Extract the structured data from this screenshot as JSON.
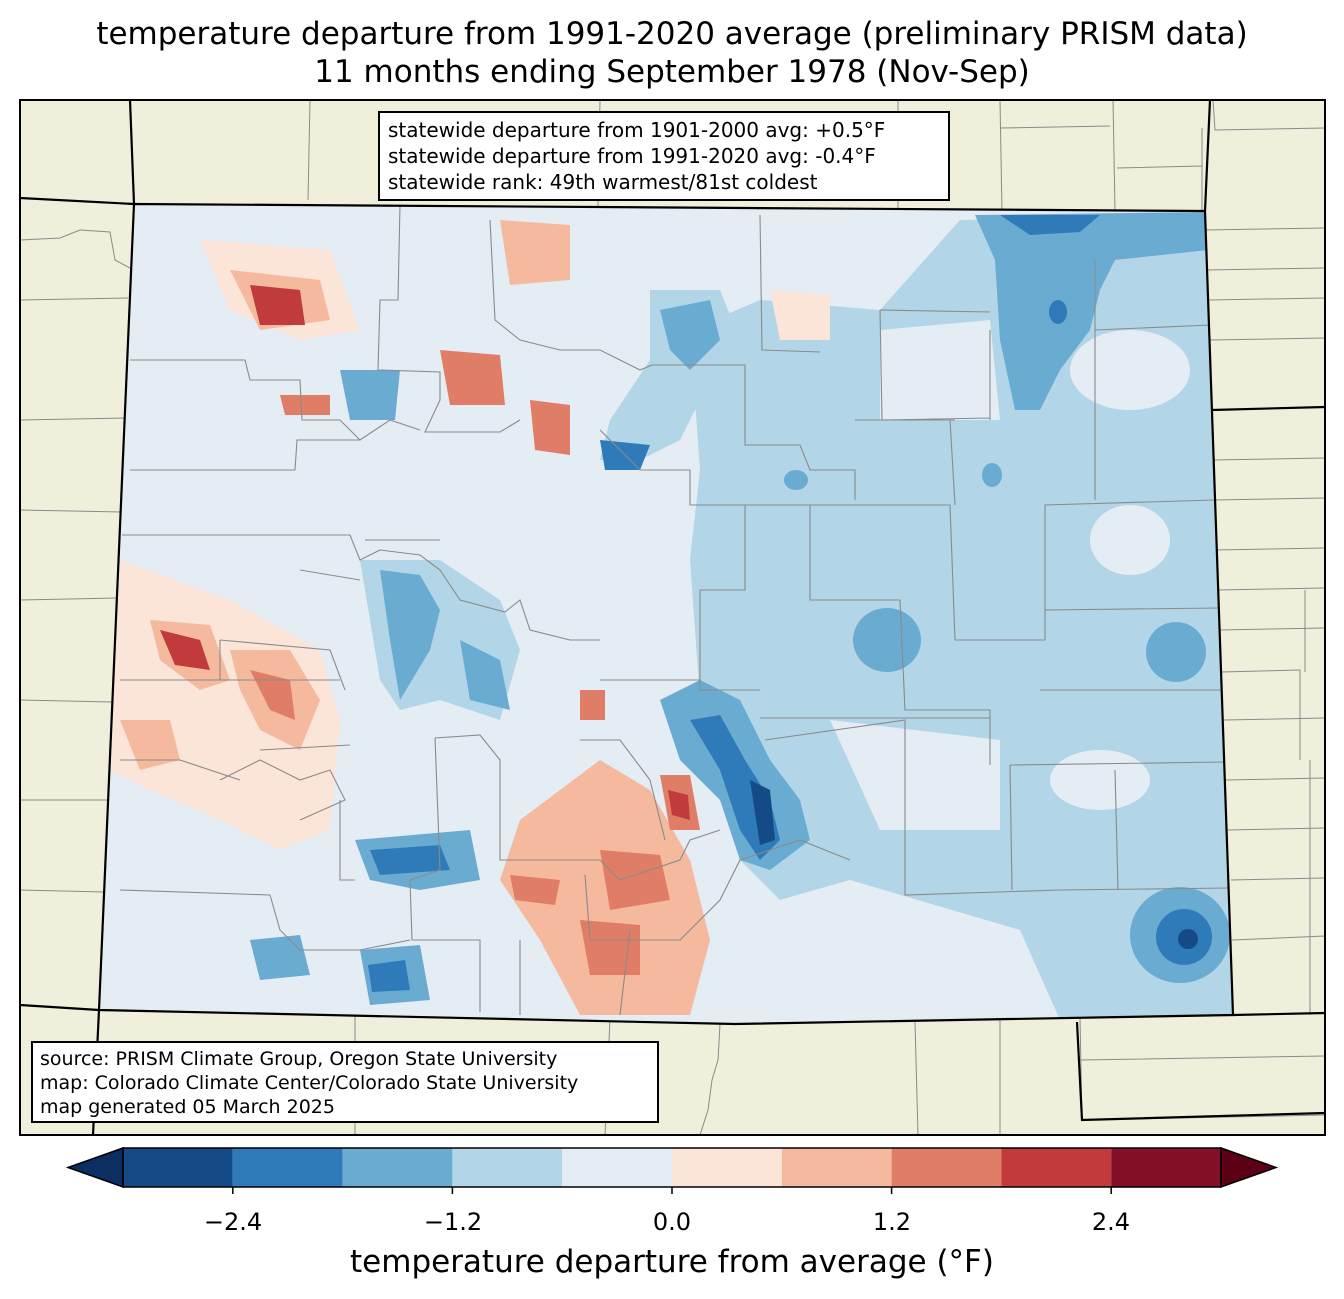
{
  "title": {
    "line1": "temperature departure from 1991-2020 average (preliminary PRISM data)",
    "line2": "11 months ending September 1978 (Nov-Sep)"
  },
  "stats": {
    "line1": "statewide departure from 1901-2000 avg: +0.5°F",
    "line2": "statewide departure from 1991-2020 avg: -0.4°F",
    "line3": "statewide rank: 49th warmest/81st coldest"
  },
  "source": {
    "line1": "source: PRISM Climate Group, Oregon State University",
    "line2": "map: Colorado Climate Center/Colorado State University",
    "line3": "map generated 05 March 2025"
  },
  "colorbar": {
    "label": "temperature departure from average (°F)",
    "ticks": [
      "−2.4",
      "−1.2",
      "0.0",
      "1.2",
      "2.4"
    ],
    "bins": [
      -3.0,
      -2.4,
      -1.8,
      -1.2,
      -0.6,
      0.0,
      0.6,
      1.2,
      1.8,
      2.4,
      3.0
    ],
    "colors": [
      "#144b87",
      "#2f7ab8",
      "#6aacd1",
      "#b2d5e7",
      "#e5edf4",
      "#fbe4d8",
      "#f5b99e",
      "#e07d66",
      "#c13b3c",
      "#850f27"
    ],
    "under_color": "#0a2f60",
    "over_color": "#5c0016"
  },
  "colors": {
    "land": "#efefdc",
    "state_border": "#000000",
    "county_border": "#8a8a8a"
  }
}
